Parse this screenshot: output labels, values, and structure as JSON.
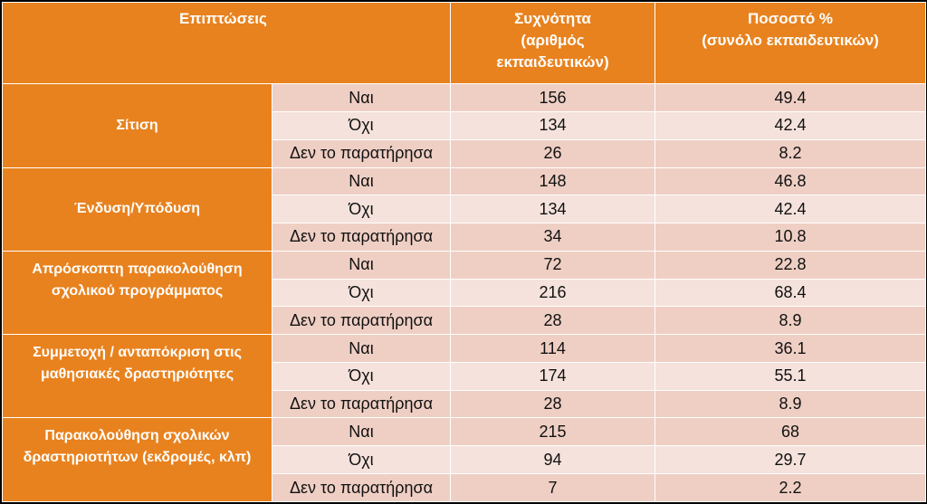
{
  "header": {
    "effect": "Επιπτώσεις",
    "frequency_line1": "Συχνότητα",
    "frequency_line2": "(αριθμός",
    "frequency_line3": "εκπαιδευτικών)",
    "percent_line1": "Ποσοστό %",
    "percent_line2": "(συνόλο εκπαιδευτικών)"
  },
  "groups": [
    {
      "category": "Σίτιση",
      "rows": [
        {
          "answer": "Ναι",
          "frequency": "156",
          "percent": "49.4"
        },
        {
          "answer": "Όχι",
          "frequency": "134",
          "percent": "42.4"
        },
        {
          "answer": "Δεν το παρατήρησα",
          "frequency": "26",
          "percent": "8.2"
        }
      ]
    },
    {
      "category": "Ένδυση/Υπόδυση",
      "rows": [
        {
          "answer": "Ναι",
          "frequency": "148",
          "percent": "46.8"
        },
        {
          "answer": "Όχι",
          "frequency": "134",
          "percent": "42.4"
        },
        {
          "answer": "Δεν το παρατήρησα",
          "frequency": "34",
          "percent": "10.8"
        }
      ]
    },
    {
      "category": "Απρόσκοπτη παρακολούθηση σχολικού προγράμματος",
      "rows": [
        {
          "answer": "Ναι",
          "frequency": "72",
          "percent": "22.8"
        },
        {
          "answer": "Όχι",
          "frequency": "216",
          "percent": "68.4"
        },
        {
          "answer": "Δεν το παρατήρησα",
          "frequency": "28",
          "percent": "8.9"
        }
      ]
    },
    {
      "category": "Συμμετοχή / ανταπόκριση στις μαθησιακές δραστηριότητες",
      "rows": [
        {
          "answer": "Ναι",
          "frequency": "114",
          "percent": "36.1"
        },
        {
          "answer": "Όχι",
          "frequency": "174",
          "percent": "55.1"
        },
        {
          "answer": "Δεν το παρατήρησα",
          "frequency": "28",
          "percent": "8.9"
        }
      ]
    },
    {
      "category": "Παρακολούθηση σχολικών δραστηριοτήτων (εκδρομές, κλπ)",
      "rows": [
        {
          "answer": "Ναι",
          "frequency": "215",
          "percent": "68"
        },
        {
          "answer": "Όχι",
          "frequency": "94",
          "percent": "29.7"
        },
        {
          "answer": "Δεν το παρατήρησα",
          "frequency": "7",
          "percent": "2.2"
        }
      ]
    }
  ]
}
